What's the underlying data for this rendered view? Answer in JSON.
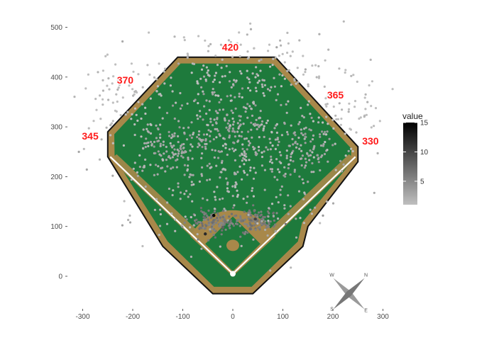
{
  "chart_data": {
    "type": "scatter",
    "title": "",
    "xlabel": "",
    "ylabel": "",
    "xlim": [
      -320,
      320
    ],
    "ylim": [
      -60,
      520
    ],
    "x_ticks": [
      -300,
      -200,
      -100,
      0,
      100,
      200,
      300
    ],
    "y_ticks": [
      0,
      100,
      200,
      300,
      400,
      500
    ],
    "x_tick_labels": [
      "-300",
      "-200",
      "-100",
      "0",
      "100",
      "200",
      "300"
    ],
    "y_tick_labels": [
      "0",
      "100",
      "200",
      "300",
      "400",
      "500"
    ],
    "grid": false,
    "field_outline": [
      [
        -250,
        240
      ],
      [
        -250,
        290
      ],
      [
        -110,
        440
      ],
      [
        85,
        440
      ],
      [
        250,
        260
      ],
      [
        250,
        230
      ],
      [
        150,
        100
      ],
      [
        140,
        60
      ],
      [
        40,
        -35
      ],
      [
        -40,
        -35
      ],
      [
        -140,
        60
      ],
      [
        -250,
        240
      ]
    ],
    "field_colors": {
      "grass": "#1e7a3c",
      "infield_dirt": "#a8884a",
      "warning_track": "#a8884a",
      "wall": "#111111",
      "foul_line": "#ffffff"
    },
    "fence_distances": [
      {
        "label": "345",
        "x": -285,
        "y": 280
      },
      {
        "label": "370",
        "x": -215,
        "y": 392
      },
      {
        "label": "420",
        "x": -5,
        "y": 458
      },
      {
        "label": "365",
        "x": 205,
        "y": 362
      },
      {
        "label": "330",
        "x": 275,
        "y": 270
      }
    ],
    "hit_clusters": [
      {
        "cx": -130,
        "cy": 255,
        "sx": 28,
        "sy": 28,
        "n": 90,
        "value": 3
      },
      {
        "cx": -5,
        "cy": 300,
        "sx": 45,
        "sy": 45,
        "n": 130,
        "value": 3
      },
      {
        "cx": 140,
        "cy": 250,
        "sx": 30,
        "sy": 35,
        "n": 100,
        "value": 3
      },
      {
        "cx": -40,
        "cy": 110,
        "sx": 25,
        "sy": 12,
        "n": 120,
        "value": 6
      },
      {
        "cx": 40,
        "cy": 110,
        "sx": 25,
        "sy": 12,
        "n": 110,
        "value": 6
      },
      {
        "cx": 0,
        "cy": 250,
        "sx": 110,
        "sy": 90,
        "n": 420,
        "value": 2
      },
      {
        "cx": 0,
        "cy": 420,
        "sx": 110,
        "sy": 35,
        "n": 130,
        "value": 1
      },
      {
        "cx": -220,
        "cy": 350,
        "sx": 40,
        "sy": 40,
        "n": 70,
        "value": 1
      },
      {
        "cx": 220,
        "cy": 330,
        "sx": 40,
        "sy": 40,
        "n": 60,
        "value": 1
      }
    ],
    "hot_points": [
      {
        "x": -38,
        "y": 122,
        "value": 15
      },
      {
        "x": -55,
        "y": 85,
        "value": 12
      },
      {
        "x": 45,
        "y": 115,
        "value": 10
      },
      {
        "x": -20,
        "y": 98,
        "value": 8
      },
      {
        "x": 35,
        "y": 95,
        "value": 7
      }
    ],
    "legend": {
      "title": "value",
      "position": "right",
      "min": 1,
      "max": 15,
      "ticks": [
        5,
        10,
        15
      ],
      "tick_labels": [
        "5",
        "10",
        "15"
      ],
      "color_low": "#bfbfbf",
      "color_high": "#000000"
    },
    "compass_letters": [
      "N",
      "S",
      "E",
      "W"
    ]
  }
}
